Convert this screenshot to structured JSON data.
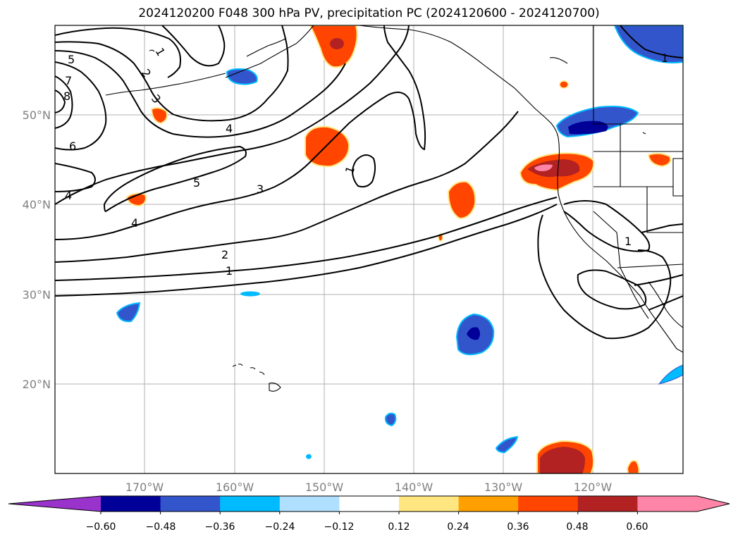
{
  "title": "2024120200 F048 300 hPa PV, precipitation PC (2024120600 - 2024120700)",
  "lat_labels": [
    "50°N",
    "40°N",
    "30°N",
    "20°N"
  ],
  "lon_labels": [
    "170°W",
    "160°W",
    "150°W",
    "140°W",
    "130°W",
    "120°W"
  ],
  "contour_labels": [
    "1",
    "2",
    "3",
    "4",
    "5",
    "6",
    "7",
    "8",
    "4",
    "5",
    "4",
    "4",
    "3",
    "2",
    "1",
    "1",
    "1",
    "1",
    "1"
  ],
  "colorbar": {
    "colors": [
      "#9933cc",
      "#000099",
      "#3355cc",
      "#00bbff",
      "#b0e0ff",
      "#ffffff",
      "#ffe680",
      "#ffa000",
      "#ff4500",
      "#b22222",
      "#ff85a8",
      "#ff85a8"
    ],
    "tick_labels": [
      "−0.60",
      "−0.48",
      "−0.36",
      "−0.24",
      "−0.12",
      "0.12",
      "0.24",
      "0.36",
      "0.48",
      "0.60"
    ]
  }
}
